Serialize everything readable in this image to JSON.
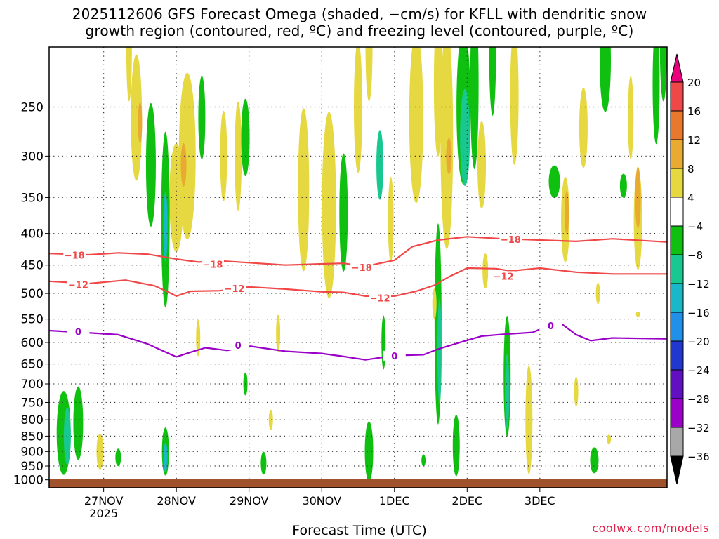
{
  "header": {
    "title_line1": "2025112606 GFS Forecast Omega (shaded, −cm/s) for KFLL with dendritic snow",
    "title_line2": "growth region (contoured, red, ºC) and freezing level (contoured, purple, ºC)"
  },
  "footer": {
    "xaxis_label": "Forecast Time (UTC)",
    "credit": "coolwx.com/models"
  },
  "colors": {
    "dgz_contour": "#f04848",
    "freezing_contour": "#9b00c8",
    "ground": "#a0522d",
    "credit": "#e0204a"
  },
  "chart_data": {
    "type": "heatmap",
    "title": "2025112606 GFS Forecast Omega (shaded, −cm/s) for KFLL with dendritic snow growth region (contoured, red, ºC) and freezing level (contoured, purple, ºC)",
    "xlabel": "Forecast Time (UTC)",
    "ylabel": "",
    "grid": true,
    "legend_placement": "right",
    "x_range_days": [
      26.25,
      34.75
    ],
    "y_range_hpa": [
      1030,
      200
    ],
    "x_ticks": [
      {
        "day": 27,
        "label": "27NOV",
        "sub": "2025"
      },
      {
        "day": 28,
        "label": "28NOV"
      },
      {
        "day": 29,
        "label": "29NOV"
      },
      {
        "day": 30,
        "label": "30NOV"
      },
      {
        "day": 31,
        "label": "1DEC"
      },
      {
        "day": 32,
        "label": "2DEC"
      },
      {
        "day": 33,
        "label": "3DEC"
      }
    ],
    "y_ticks": [
      250,
      300,
      350,
      400,
      450,
      500,
      550,
      600,
      650,
      700,
      750,
      800,
      850,
      900,
      950,
      1000
    ],
    "colorbar": {
      "labels": [
        "20",
        "16",
        "12",
        "8",
        "4",
        "−4",
        "−8",
        "−12",
        "−16",
        "−20",
        "−24",
        "−28",
        "−32",
        "−36"
      ],
      "colors": [
        "#e8007c",
        "#f04848",
        "#e8782c",
        "#e8aa30",
        "#e6d840",
        "#ffffff",
        "#10c010",
        "#18c890",
        "#18b8c8",
        "#2090e8",
        "#2038d0",
        "#6010c0",
        "#9b00c8",
        "#a8a8a8",
        "#000000"
      ]
    },
    "contours": [
      {
        "label": "−18",
        "color": "#f04848",
        "label_points": [
          [
            26.6,
            435
          ],
          [
            28.5,
            450
          ],
          [
            30.55,
            455
          ],
          [
            32.6,
            410
          ]
        ],
        "points": [
          [
            26.25,
            431
          ],
          [
            26.8,
            433
          ],
          [
            27.2,
            430
          ],
          [
            27.6,
            432
          ],
          [
            28,
            440
          ],
          [
            28.3,
            445
          ],
          [
            28.6,
            443
          ],
          [
            29,
            446
          ],
          [
            29.5,
            450
          ],
          [
            30,
            448
          ],
          [
            30.3,
            447
          ],
          [
            30.6,
            452
          ],
          [
            31,
            442
          ],
          [
            31.25,
            420
          ],
          [
            31.6,
            410
          ],
          [
            32,
            405
          ],
          [
            32.5,
            408
          ],
          [
            33,
            410
          ],
          [
            33.5,
            412
          ],
          [
            34,
            408
          ],
          [
            34.75,
            413
          ]
        ]
      },
      {
        "label": "−12",
        "color": "#f04848",
        "label_points": [
          [
            26.65,
            485
          ],
          [
            28.8,
            492
          ],
          [
            30.8,
            510
          ],
          [
            32.5,
            470
          ]
        ],
        "points": [
          [
            26.25,
            478
          ],
          [
            26.8,
            482
          ],
          [
            27.3,
            476
          ],
          [
            27.7,
            486
          ],
          [
            27.9,
            498
          ],
          [
            28,
            505
          ],
          [
            28.2,
            496
          ],
          [
            28.6,
            495
          ],
          [
            29,
            488
          ],
          [
            29.5,
            492
          ],
          [
            30,
            497
          ],
          [
            30.3,
            498
          ],
          [
            30.6,
            505
          ],
          [
            31,
            505
          ],
          [
            31.3,
            496
          ],
          [
            31.55,
            485
          ],
          [
            31.75,
            470
          ],
          [
            32,
            455
          ],
          [
            32.4,
            456
          ],
          [
            32.6,
            460
          ],
          [
            33,
            455
          ],
          [
            33.5,
            462
          ],
          [
            34,
            465
          ],
          [
            34.75,
            465
          ]
        ]
      },
      {
        "label": "0",
        "color": "#9b00c8",
        "label_points": [
          [
            26.65,
            578
          ],
          [
            28.85,
            608
          ],
          [
            31.0,
            632
          ],
          [
            33.15,
            565
          ]
        ],
        "points": [
          [
            26.25,
            574
          ],
          [
            26.7,
            578
          ],
          [
            27.2,
            583
          ],
          [
            27.6,
            603
          ],
          [
            27.8,
            618
          ],
          [
            28,
            633
          ],
          [
            28.2,
            622
          ],
          [
            28.4,
            612
          ],
          [
            28.7,
            618
          ],
          [
            29,
            608
          ],
          [
            29.5,
            620
          ],
          [
            30,
            625
          ],
          [
            30.3,
            632
          ],
          [
            30.6,
            640
          ],
          [
            31,
            630
          ],
          [
            31.4,
            628
          ],
          [
            31.6,
            615
          ],
          [
            31.9,
            600
          ],
          [
            32.2,
            586
          ],
          [
            32.5,
            582
          ],
          [
            32.9,
            578
          ],
          [
            33.1,
            565
          ],
          [
            33.3,
            560
          ],
          [
            33.5,
            583
          ],
          [
            33.7,
            596
          ],
          [
            34,
            590
          ],
          [
            34.75,
            592
          ]
        ]
      }
    ]
  }
}
